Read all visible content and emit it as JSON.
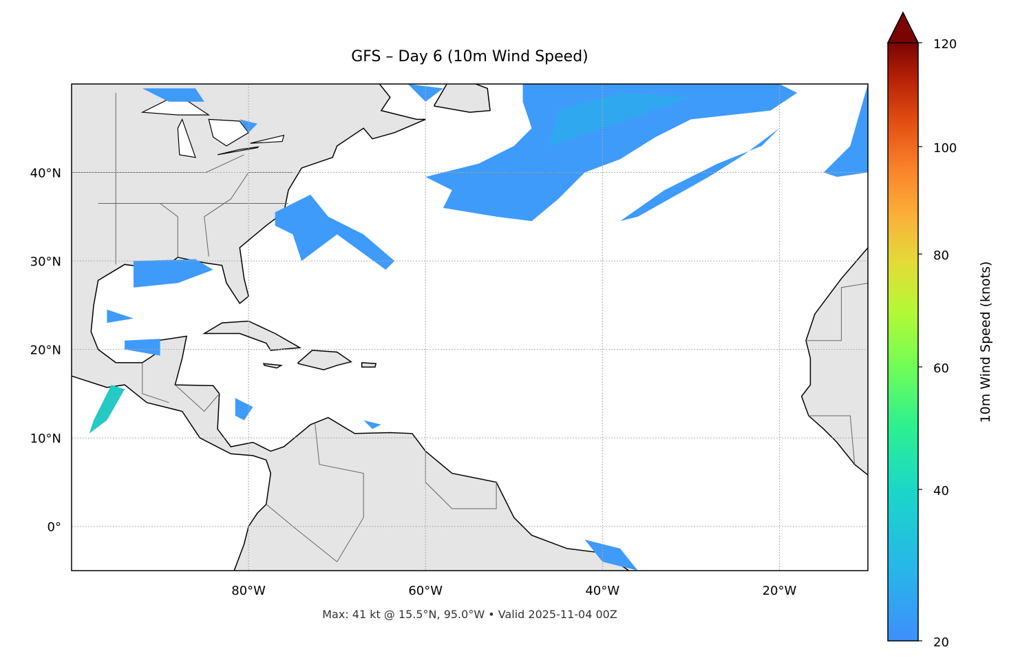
{
  "title": "GFS – Day 6 (10m Wind Speed)",
  "footer": "Max: 41 kt @ 15.5°N, 95.0°W • Valid 2025-11-04 00Z",
  "map": {
    "extent": {
      "lon_min": -100,
      "lon_max": -10,
      "lat_min": -5,
      "lat_max": 50
    },
    "lon_ticks": [
      {
        "value": -80,
        "label": "80°W"
      },
      {
        "value": -60,
        "label": "60°W"
      },
      {
        "value": -40,
        "label": "40°W"
      },
      {
        "value": -20,
        "label": "20°W"
      }
    ],
    "lat_ticks": [
      {
        "value": 40,
        "label": "40°N"
      },
      {
        "value": 30,
        "label": "30°N"
      },
      {
        "value": 20,
        "label": "20°N"
      },
      {
        "value": 10,
        "label": "10°N"
      },
      {
        "value": 0,
        "label": "0°"
      }
    ],
    "gridlines": true,
    "land_color": "#e5e5e5",
    "coast_color": "#000000",
    "border_color": "#666666",
    "max_wind": {
      "value_kt": 41,
      "lat": 15.5,
      "lon": -95.0
    }
  },
  "colorbar": {
    "label": "10m Wind Speed (knots)",
    "ticks": [
      "20",
      "40",
      "60",
      "80",
      "100",
      "120"
    ],
    "extend": "max",
    "colormap": "turbo",
    "range": [
      20,
      120
    ]
  }
}
